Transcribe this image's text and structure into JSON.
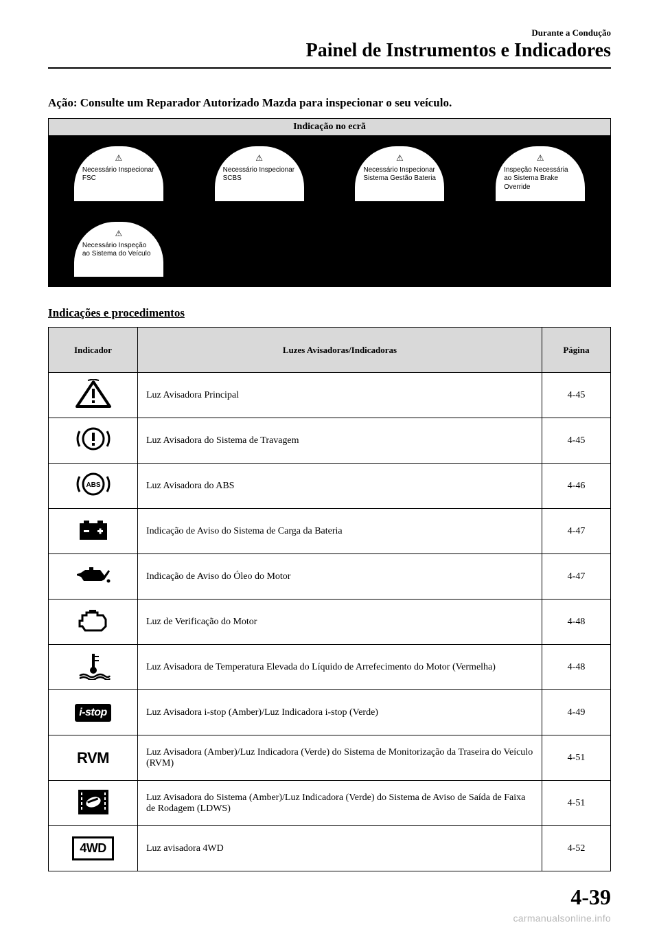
{
  "header": {
    "small": "Durante a Condução",
    "large": "Painel de Instrumentos e Indicadores"
  },
  "action_line": "Ação: Consulte um Reparador Autorizado Mazda para inspecionar o seu veículo.",
  "screen_table": {
    "header": "Indicação no ecrã",
    "messages": [
      "Necessário Inspecionar FSC",
      "Necessário Inspecionar SCBS",
      "Necessário Inspecionar Sistema Gestão Bateria",
      "Inspeção Necessária ao Sistema Brake Override",
      "Necessário Inspeção ao Sistema do Veículo",
      "",
      "",
      ""
    ]
  },
  "subhead": "Indicações e procedimentos",
  "ind_table": {
    "headers": {
      "c1": "Indicador",
      "c2": "Luzes Avisadoras/Indicadoras",
      "c3": "Página"
    },
    "rows": [
      {
        "icon": "warning-triangle",
        "label": "Luz Avisadora Principal",
        "page": "4-45"
      },
      {
        "icon": "brake-circle",
        "label": "Luz Avisadora do Sistema de Travagem",
        "page": "4-45"
      },
      {
        "icon": "abs-circle",
        "label": "Luz Avisadora do ABS",
        "page": "4-46"
      },
      {
        "icon": "battery",
        "label": "Indicação de Aviso do Sistema de Carga da Bateria",
        "page": "4-47"
      },
      {
        "icon": "oil-can",
        "label": "Indicação de Aviso do Óleo do Motor",
        "page": "4-47"
      },
      {
        "icon": "engine",
        "label": "Luz de Verificação do Motor",
        "page": "4-48"
      },
      {
        "icon": "coolant-temp",
        "label": "Luz Avisadora de Temperatura Elevada do Líquido de Arrefecimento do Motor (Vermelha)",
        "page": "4-48"
      },
      {
        "icon": "istop-text",
        "label": "Luz Avisadora i-stop (Amber)/Luz Indicadora i-stop (Verde)",
        "page": "4-49"
      },
      {
        "icon": "rvm-text",
        "label": "Luz Avisadora (Amber)/Luz Indicadora (Verde) do Sistema de Monitorização da Traseira do Veículo (RVM)",
        "page": "4-51"
      },
      {
        "icon": "ldws",
        "label": "Luz Avisadora do Sistema (Amber)/Luz Indicadora (Verde) do Sistema de Aviso de Saída de Faixa de Rodagem (LDWS)",
        "page": "4-51"
      },
      {
        "icon": "4wd-text",
        "label": "Luz avisadora 4WD",
        "page": "4-52"
      }
    ]
  },
  "page_number": "4-39",
  "watermark": "carmanualsonline.info",
  "colors": {
    "header_bg": "#d9d9d9",
    "cell_bg": "#000000",
    "text": "#000000"
  }
}
